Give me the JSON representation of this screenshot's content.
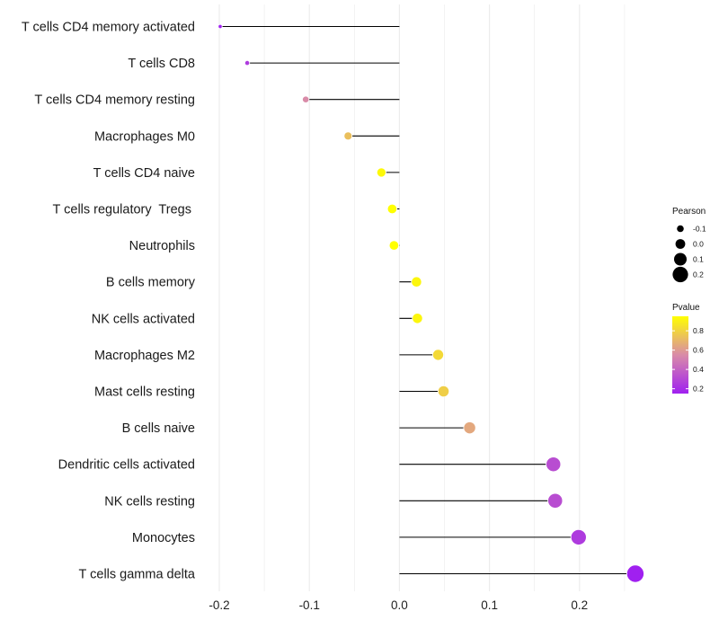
{
  "chart_data": {
    "type": "lollipop",
    "title": "",
    "xlabel": "",
    "ylabel": "",
    "xlim": [
      -0.2,
      0.26
    ],
    "baseline": 0,
    "x_ticks": [
      -0.2,
      -0.1,
      0.0,
      0.1,
      0.2
    ],
    "x_tick_labels": [
      "-0.2",
      "-0.1",
      "0.0",
      "0.1",
      "0.2"
    ],
    "grid": true,
    "size_legend": {
      "title": "Pearson",
      "entries": [
        {
          "value": -0.1,
          "label": "-0.1"
        },
        {
          "value": 0.0,
          "label": "0.0"
        },
        {
          "value": 0.1,
          "label": "0.1"
        },
        {
          "value": 0.2,
          "label": "0.2"
        }
      ]
    },
    "color_legend": {
      "title": "Pvalue",
      "range": [
        0.15,
        0.95
      ],
      "ticks": [
        {
          "value": 0.8,
          "label": "0.8"
        },
        {
          "value": 0.6,
          "label": "0.6"
        },
        {
          "value": 0.4,
          "label": "0.4"
        },
        {
          "value": 0.2,
          "label": "0.2"
        }
      ],
      "low_color": "#A020F0",
      "mid_color": "#D98BA8",
      "high_color": "#FFFF00"
    },
    "point_border_color": "#FFFFFF",
    "line_color": "#000000",
    "grid_color": "#EBEBEB",
    "categories": [
      "T cells CD4 memory activated",
      "T cells CD8",
      "T cells CD4 memory resting",
      "Macrophages M0",
      "T cells CD4 naive",
      "T cells regulatory  Tregs ",
      "Neutrophils",
      "B cells memory",
      "NK cells activated",
      "Macrophages M2",
      "Mast cells resting",
      "B cells naive",
      "Dendritic cells activated",
      "NK cells resting",
      "Monocytes",
      "T cells gamma delta"
    ],
    "values": [
      -0.199,
      -0.169,
      -0.104,
      -0.057,
      -0.02,
      -0.008,
      -0.006,
      0.019,
      0.02,
      0.043,
      0.049,
      0.078,
      0.171,
      0.173,
      0.199,
      0.262
    ],
    "pvalues": [
      0.15,
      0.25,
      0.55,
      0.73,
      0.93,
      0.97,
      0.98,
      0.92,
      0.92,
      0.82,
      0.78,
      0.65,
      0.32,
      0.32,
      0.25,
      0.15
    ]
  }
}
